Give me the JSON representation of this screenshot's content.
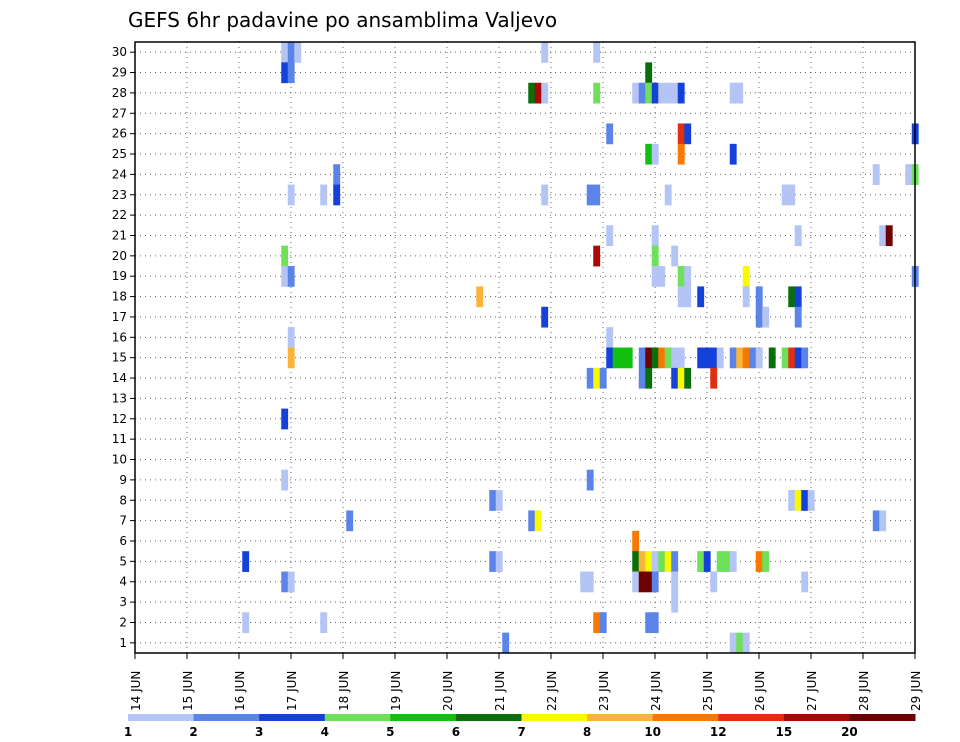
{
  "chart_data": {
    "type": "heatmap",
    "title": "GEFS 6hr padavine po ansamblima Valjevo",
    "xlabel": "",
    "ylabel": "",
    "x_ticks": [
      "14 JUN",
      "15 JUN",
      "16 JUN",
      "17 JUN",
      "18 JUN",
      "19 JUN",
      "20 JUN",
      "21 JUN",
      "22 JUN",
      "23 JUN",
      "24 JUN",
      "25 JUN",
      "26 JUN",
      "27 JUN",
      "28 JUN",
      "29 JUN"
    ],
    "y_ticks": [
      "1",
      "2",
      "3",
      "4",
      "5",
      "6",
      "7",
      "8",
      "9",
      "10",
      "11",
      "12",
      "13",
      "14",
      "15",
      "16",
      "17",
      "18",
      "19",
      "20",
      "21",
      "22",
      "23",
      "24",
      "25",
      "26",
      "27",
      "28",
      "29",
      "30"
    ],
    "xlim": [
      0,
      60
    ],
    "ylim": [
      1,
      30
    ],
    "grid": true,
    "levels": [
      "1",
      "2",
      "3",
      "4",
      "5",
      "6",
      "7",
      "8",
      "10",
      "12",
      "15",
      "20"
    ],
    "colors": [
      "#b4c4f4",
      "#5a84e8",
      "#1442d8",
      "#6ee05a",
      "#12c012",
      "#0a6e0a",
      "#f8f800",
      "#fab43c",
      "#f87800",
      "#e03010",
      "#a80808",
      "#6e0000"
    ],
    "cells": [
      {
        "t": 11.5,
        "m": 30,
        "c": 0
      },
      {
        "t": 12.0,
        "m": 30,
        "c": 1
      },
      {
        "t": 12.5,
        "m": 30,
        "c": 0
      },
      {
        "t": 31.5,
        "m": 30,
        "c": 0
      },
      {
        "t": 35.5,
        "m": 30,
        "c": 0
      },
      {
        "t": 11.5,
        "m": 29,
        "c": 2
      },
      {
        "t": 12.0,
        "m": 29,
        "c": 1
      },
      {
        "t": 39.5,
        "m": 29,
        "c": 5
      },
      {
        "t": 30.5,
        "m": 28,
        "c": 5
      },
      {
        "t": 31.0,
        "m": 28,
        "c": 10
      },
      {
        "t": 31.5,
        "m": 28,
        "c": 0
      },
      {
        "t": 35.5,
        "m": 28,
        "c": 3
      },
      {
        "t": 38.5,
        "m": 28,
        "c": 0
      },
      {
        "t": 39.0,
        "m": 28,
        "c": 1
      },
      {
        "t": 39.5,
        "m": 28,
        "c": 3
      },
      {
        "t": 40.0,
        "m": 28,
        "c": 2
      },
      {
        "t": 40.5,
        "m": 28,
        "c": 0
      },
      {
        "t": 41.0,
        "m": 28,
        "c": 0
      },
      {
        "t": 41.5,
        "m": 28,
        "c": 0
      },
      {
        "t": 42.0,
        "m": 28,
        "c": 2
      },
      {
        "t": 46.0,
        "m": 28,
        "c": 0
      },
      {
        "t": 46.5,
        "m": 28,
        "c": 0
      },
      {
        "t": 36.5,
        "m": 26,
        "c": 1
      },
      {
        "t": 42.0,
        "m": 26,
        "c": 9
      },
      {
        "t": 42.5,
        "m": 26,
        "c": 2
      },
      {
        "t": 60.0,
        "m": 26,
        "c": 2
      },
      {
        "t": 39.5,
        "m": 25,
        "c": 4
      },
      {
        "t": 40.0,
        "m": 25,
        "c": 0
      },
      {
        "t": 42.0,
        "m": 25,
        "c": 8
      },
      {
        "t": 46.0,
        "m": 25,
        "c": 2
      },
      {
        "t": 15.5,
        "m": 24,
        "c": 1
      },
      {
        "t": 57.0,
        "m": 24,
        "c": 0
      },
      {
        "t": 59.5,
        "m": 24,
        "c": 0
      },
      {
        "t": 60.0,
        "m": 24,
        "c": 3
      },
      {
        "t": 12.0,
        "m": 23,
        "c": 0
      },
      {
        "t": 14.5,
        "m": 23,
        "c": 0
      },
      {
        "t": 15.5,
        "m": 23,
        "c": 2
      },
      {
        "t": 31.5,
        "m": 23,
        "c": 0
      },
      {
        "t": 35.0,
        "m": 23,
        "c": 1
      },
      {
        "t": 35.5,
        "m": 23,
        "c": 1
      },
      {
        "t": 41.0,
        "m": 23,
        "c": 0
      },
      {
        "t": 50.0,
        "m": 23,
        "c": 0
      },
      {
        "t": 50.5,
        "m": 23,
        "c": 0
      },
      {
        "t": 36.5,
        "m": 21,
        "c": 0
      },
      {
        "t": 40.0,
        "m": 21,
        "c": 0
      },
      {
        "t": 51.0,
        "m": 21,
        "c": 0
      },
      {
        "t": 57.5,
        "m": 21,
        "c": 0
      },
      {
        "t": 58.0,
        "m": 21,
        "c": 11
      },
      {
        "t": 11.5,
        "m": 20,
        "c": 3
      },
      {
        "t": 35.5,
        "m": 20,
        "c": 10
      },
      {
        "t": 40.0,
        "m": 20,
        "c": 3
      },
      {
        "t": 41.5,
        "m": 20,
        "c": 0
      },
      {
        "t": 11.5,
        "m": 19,
        "c": 0
      },
      {
        "t": 12.0,
        "m": 19,
        "c": 1
      },
      {
        "t": 40.0,
        "m": 19,
        "c": 0
      },
      {
        "t": 40.5,
        "m": 19,
        "c": 0
      },
      {
        "t": 42.0,
        "m": 19,
        "c": 3
      },
      {
        "t": 42.5,
        "m": 19,
        "c": 0
      },
      {
        "t": 47.0,
        "m": 19,
        "c": 6
      },
      {
        "t": 60.0,
        "m": 19,
        "c": 1
      },
      {
        "t": 26.5,
        "m": 18,
        "c": 7
      },
      {
        "t": 42.0,
        "m": 18,
        "c": 0
      },
      {
        "t": 42.5,
        "m": 18,
        "c": 0
      },
      {
        "t": 43.5,
        "m": 18,
        "c": 2
      },
      {
        "t": 47.0,
        "m": 18,
        "c": 0
      },
      {
        "t": 48.0,
        "m": 18,
        "c": 1
      },
      {
        "t": 50.5,
        "m": 18,
        "c": 5
      },
      {
        "t": 51.0,
        "m": 18,
        "c": 2
      },
      {
        "t": 31.5,
        "m": 17,
        "c": 2
      },
      {
        "t": 48.0,
        "m": 17,
        "c": 1
      },
      {
        "t": 48.5,
        "m": 17,
        "c": 0
      },
      {
        "t": 51.0,
        "m": 17,
        "c": 1
      },
      {
        "t": 12.0,
        "m": 16,
        "c": 0
      },
      {
        "t": 36.5,
        "m": 16,
        "c": 0
      },
      {
        "t": 12.0,
        "m": 15,
        "c": 7
      },
      {
        "t": 36.5,
        "m": 15,
        "c": 2
      },
      {
        "t": 37.0,
        "m": 15,
        "c": 4
      },
      {
        "t": 37.5,
        "m": 15,
        "c": 4
      },
      {
        "t": 38.0,
        "m": 15,
        "c": 4
      },
      {
        "t": 39.0,
        "m": 15,
        "c": 1
      },
      {
        "t": 39.5,
        "m": 15,
        "c": 11
      },
      {
        "t": 40.0,
        "m": 15,
        "c": 5
      },
      {
        "t": 40.5,
        "m": 15,
        "c": 8
      },
      {
        "t": 41.0,
        "m": 15,
        "c": 3
      },
      {
        "t": 41.5,
        "m": 15,
        "c": 0
      },
      {
        "t": 42.0,
        "m": 15,
        "c": 0
      },
      {
        "t": 43.5,
        "m": 15,
        "c": 2
      },
      {
        "t": 44.0,
        "m": 15,
        "c": 2
      },
      {
        "t": 44.5,
        "m": 15,
        "c": 2
      },
      {
        "t": 45.0,
        "m": 15,
        "c": 0
      },
      {
        "t": 46.0,
        "m": 15,
        "c": 1
      },
      {
        "t": 46.5,
        "m": 15,
        "c": 7
      },
      {
        "t": 47.0,
        "m": 15,
        "c": 8
      },
      {
        "t": 47.5,
        "m": 15,
        "c": 1
      },
      {
        "t": 48.0,
        "m": 15,
        "c": 0
      },
      {
        "t": 49.0,
        "m": 15,
        "c": 5
      },
      {
        "t": 50.0,
        "m": 15,
        "c": 3
      },
      {
        "t": 50.5,
        "m": 15,
        "c": 9
      },
      {
        "t": 51.0,
        "m": 15,
        "c": 2
      },
      {
        "t": 51.5,
        "m": 15,
        "c": 1
      },
      {
        "t": 35.0,
        "m": 14,
        "c": 1
      },
      {
        "t": 35.5,
        "m": 14,
        "c": 6
      },
      {
        "t": 36.0,
        "m": 14,
        "c": 1
      },
      {
        "t": 39.0,
        "m": 14,
        "c": 1
      },
      {
        "t": 39.5,
        "m": 14,
        "c": 5
      },
      {
        "t": 41.5,
        "m": 14,
        "c": 2
      },
      {
        "t": 42.0,
        "m": 14,
        "c": 6
      },
      {
        "t": 42.5,
        "m": 14,
        "c": 5
      },
      {
        "t": 44.5,
        "m": 14,
        "c": 9
      },
      {
        "t": 11.5,
        "m": 12,
        "c": 2
      },
      {
        "t": 11.5,
        "m": 9,
        "c": 0
      },
      {
        "t": 35.0,
        "m": 9,
        "c": 1
      },
      {
        "t": 27.5,
        "m": 8,
        "c": 1
      },
      {
        "t": 28.0,
        "m": 8,
        "c": 0
      },
      {
        "t": 50.5,
        "m": 8,
        "c": 0
      },
      {
        "t": 51.0,
        "m": 8,
        "c": 6
      },
      {
        "t": 51.5,
        "m": 8,
        "c": 2
      },
      {
        "t": 52.0,
        "m": 8,
        "c": 0
      },
      {
        "t": 16.5,
        "m": 7,
        "c": 1
      },
      {
        "t": 30.5,
        "m": 7,
        "c": 1
      },
      {
        "t": 31.0,
        "m": 7,
        "c": 6
      },
      {
        "t": 57.0,
        "m": 7,
        "c": 1
      },
      {
        "t": 57.5,
        "m": 7,
        "c": 0
      },
      {
        "t": 38.5,
        "m": 6,
        "c": 8
      },
      {
        "t": 8.5,
        "m": 5,
        "c": 2
      },
      {
        "t": 27.5,
        "m": 5,
        "c": 1
      },
      {
        "t": 28.0,
        "m": 5,
        "c": 0
      },
      {
        "t": 38.5,
        "m": 5,
        "c": 5
      },
      {
        "t": 39.0,
        "m": 5,
        "c": 7
      },
      {
        "t": 39.5,
        "m": 5,
        "c": 6
      },
      {
        "t": 40.0,
        "m": 5,
        "c": 0
      },
      {
        "t": 40.5,
        "m": 5,
        "c": 3
      },
      {
        "t": 41.0,
        "m": 5,
        "c": 6
      },
      {
        "t": 41.5,
        "m": 5,
        "c": 1
      },
      {
        "t": 43.5,
        "m": 5,
        "c": 3
      },
      {
        "t": 44.0,
        "m": 5,
        "c": 2
      },
      {
        "t": 45.0,
        "m": 5,
        "c": 3
      },
      {
        "t": 45.5,
        "m": 5,
        "c": 3
      },
      {
        "t": 46.0,
        "m": 5,
        "c": 0
      },
      {
        "t": 48.0,
        "m": 5,
        "c": 8
      },
      {
        "t": 48.5,
        "m": 5,
        "c": 3
      },
      {
        "t": 11.5,
        "m": 4,
        "c": 1
      },
      {
        "t": 12.0,
        "m": 4,
        "c": 0
      },
      {
        "t": 34.5,
        "m": 4,
        "c": 0
      },
      {
        "t": 35.0,
        "m": 4,
        "c": 0
      },
      {
        "t": 38.5,
        "m": 4,
        "c": 0
      },
      {
        "t": 39.0,
        "m": 4,
        "c": 11
      },
      {
        "t": 39.5,
        "m": 4,
        "c": 11
      },
      {
        "t": 40.0,
        "m": 4,
        "c": 1
      },
      {
        "t": 41.5,
        "m": 4,
        "c": 0
      },
      {
        "t": 44.5,
        "m": 4,
        "c": 0
      },
      {
        "t": 51.5,
        "m": 4,
        "c": 0
      },
      {
        "t": 41.5,
        "m": 3,
        "c": 0
      },
      {
        "t": 8.5,
        "m": 2,
        "c": 0
      },
      {
        "t": 14.5,
        "m": 2,
        "c": 0
      },
      {
        "t": 35.5,
        "m": 2,
        "c": 8
      },
      {
        "t": 36.0,
        "m": 2,
        "c": 1
      },
      {
        "t": 39.5,
        "m": 2,
        "c": 1
      },
      {
        "t": 40.0,
        "m": 2,
        "c": 1
      },
      {
        "t": 28.5,
        "m": 1,
        "c": 1
      },
      {
        "t": 46.0,
        "m": 1,
        "c": 0
      },
      {
        "t": 46.5,
        "m": 1,
        "c": 3
      },
      {
        "t": 47.0,
        "m": 1,
        "c": 0
      }
    ]
  }
}
